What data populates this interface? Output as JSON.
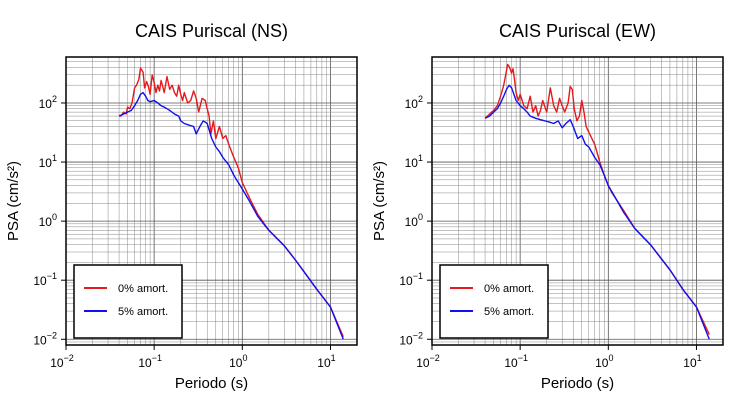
{
  "chart_data": [
    {
      "type": "line",
      "title": "CAIS Puriscal (NS)",
      "xlabel": "Periodo (s)",
      "ylabel": "PSA (cm/s²)",
      "x_scale": "log",
      "y_scale": "log",
      "xlim": [
        0.01,
        20
      ],
      "ylim": [
        0.008,
        600
      ],
      "grid": true,
      "legend_position": "bottom-left",
      "x_ticks": [
        {
          "base": "10",
          "exp": "−2",
          "value": 0.01
        },
        {
          "base": "10",
          "exp": "−1",
          "value": 0.1
        },
        {
          "base": "10",
          "exp": "0",
          "value": 1
        },
        {
          "base": "10",
          "exp": "1",
          "value": 10
        }
      ],
      "y_ticks": [
        {
          "base": "10",
          "exp": "−2",
          "value": 0.01
        },
        {
          "base": "10",
          "exp": "−1",
          "value": 0.1
        },
        {
          "base": "10",
          "exp": "0",
          "value": 1
        },
        {
          "base": "10",
          "exp": "1",
          "value": 10
        },
        {
          "base": "10",
          "exp": "2",
          "value": 100
        }
      ],
      "series": [
        {
          "name": "0% amort.",
          "color": "#e41a1c",
          "points": [
            [
              0.04,
              62
            ],
            [
              0.042,
              60
            ],
            [
              0.045,
              70
            ],
            [
              0.048,
              65
            ],
            [
              0.05,
              85
            ],
            [
              0.053,
              80
            ],
            [
              0.056,
              100
            ],
            [
              0.06,
              180
            ],
            [
              0.063,
              200
            ],
            [
              0.067,
              250
            ],
            [
              0.07,
              390
            ],
            [
              0.075,
              330
            ],
            [
              0.078,
              180
            ],
            [
              0.082,
              230
            ],
            [
              0.086,
              190
            ],
            [
              0.09,
              140
            ],
            [
              0.095,
              300
            ],
            [
              0.1,
              220
            ],
            [
              0.105,
              150
            ],
            [
              0.11,
              200
            ],
            [
              0.115,
              160
            ],
            [
              0.12,
              240
            ],
            [
              0.125,
              190
            ],
            [
              0.13,
              150
            ],
            [
              0.14,
              280
            ],
            [
              0.15,
              170
            ],
            [
              0.16,
              200
            ],
            [
              0.17,
              150
            ],
            [
              0.18,
              130
            ],
            [
              0.19,
              200
            ],
            [
              0.2,
              140
            ],
            [
              0.21,
              110
            ],
            [
              0.22,
              150
            ],
            [
              0.24,
              100
            ],
            [
              0.26,
              110
            ],
            [
              0.28,
              160
            ],
            [
              0.3,
              120
            ],
            [
              0.32,
              70
            ],
            [
              0.35,
              120
            ],
            [
              0.38,
              110
            ],
            [
              0.4,
              80
            ],
            [
              0.42,
              60
            ],
            [
              0.44,
              30
            ],
            [
              0.47,
              50
            ],
            [
              0.5,
              25
            ],
            [
              0.55,
              40
            ],
            [
              0.6,
              25
            ],
            [
              0.65,
              28
            ],
            [
              0.7,
              20
            ],
            [
              0.8,
              12
            ],
            [
              0.9,
              8
            ],
            [
              1.0,
              4.5
            ],
            [
              1.2,
              2.5
            ],
            [
              1.5,
              1.3
            ],
            [
              2,
              0.7
            ],
            [
              3,
              0.38
            ],
            [
              4,
              0.22
            ],
            [
              5,
              0.14
            ],
            [
              7,
              0.07
            ],
            [
              10,
              0.035
            ],
            [
              14,
              0.011
            ]
          ]
        },
        {
          "name": "5% amort.",
          "color": "#1010f0",
          "points": [
            [
              0.04,
              60
            ],
            [
              0.045,
              65
            ],
            [
              0.05,
              70
            ],
            [
              0.055,
              75
            ],
            [
              0.06,
              90
            ],
            [
              0.065,
              110
            ],
            [
              0.07,
              140
            ],
            [
              0.075,
              150
            ],
            [
              0.08,
              130
            ],
            [
              0.085,
              110
            ],
            [
              0.09,
              105
            ],
            [
              0.1,
              110
            ],
            [
              0.11,
              100
            ],
            [
              0.12,
              90
            ],
            [
              0.13,
              85
            ],
            [
              0.14,
              80
            ],
            [
              0.15,
              75
            ],
            [
              0.17,
              65
            ],
            [
              0.19,
              60
            ],
            [
              0.2,
              50
            ],
            [
              0.22,
              45
            ],
            [
              0.25,
              42
            ],
            [
              0.28,
              40
            ],
            [
              0.3,
              30
            ],
            [
              0.33,
              40
            ],
            [
              0.36,
              50
            ],
            [
              0.4,
              45
            ],
            [
              0.45,
              25
            ],
            [
              0.5,
              18
            ],
            [
              0.55,
              15
            ],
            [
              0.6,
              12
            ],
            [
              0.7,
              9
            ],
            [
              0.8,
              6
            ],
            [
              0.9,
              4.5
            ],
            [
              1.0,
              3.5
            ],
            [
              1.2,
              2.2
            ],
            [
              1.5,
              1.2
            ],
            [
              2,
              0.7
            ],
            [
              3,
              0.38
            ],
            [
              4,
              0.22
            ],
            [
              5,
              0.14
            ],
            [
              7,
              0.07
            ],
            [
              10,
              0.035
            ],
            [
              14,
              0.01
            ]
          ]
        }
      ]
    },
    {
      "type": "line",
      "title": "CAIS Puriscal (EW)",
      "xlabel": "Periodo (s)",
      "ylabel": "PSA (cm/s²)",
      "x_scale": "log",
      "y_scale": "log",
      "xlim": [
        0.01,
        20
      ],
      "ylim": [
        0.008,
        600
      ],
      "grid": true,
      "legend_position": "bottom-left",
      "x_ticks": [
        {
          "base": "10",
          "exp": "−2",
          "value": 0.01
        },
        {
          "base": "10",
          "exp": "−1",
          "value": 0.1
        },
        {
          "base": "10",
          "exp": "0",
          "value": 1
        },
        {
          "base": "10",
          "exp": "1",
          "value": 10
        }
      ],
      "y_ticks": [
        {
          "base": "10",
          "exp": "−2",
          "value": 0.01
        },
        {
          "base": "10",
          "exp": "−1",
          "value": 0.1
        },
        {
          "base": "10",
          "exp": "0",
          "value": 1
        },
        {
          "base": "10",
          "exp": "1",
          "value": 10
        },
        {
          "base": "10",
          "exp": "2",
          "value": 100
        }
      ],
      "series": [
        {
          "name": "0% amort.",
          "color": "#e41a1c",
          "points": [
            [
              0.04,
              55
            ],
            [
              0.045,
              65
            ],
            [
              0.05,
              75
            ],
            [
              0.055,
              90
            ],
            [
              0.06,
              130
            ],
            [
              0.065,
              200
            ],
            [
              0.07,
              350
            ],
            [
              0.072,
              450
            ],
            [
              0.076,
              400
            ],
            [
              0.08,
              320
            ],
            [
              0.083,
              380
            ],
            [
              0.086,
              260
            ],
            [
              0.09,
              150
            ],
            [
              0.095,
              110
            ],
            [
              0.1,
              140
            ],
            [
              0.11,
              90
            ],
            [
              0.12,
              80
            ],
            [
              0.13,
              130
            ],
            [
              0.14,
              70
            ],
            [
              0.15,
              90
            ],
            [
              0.16,
              60
            ],
            [
              0.17,
              75
            ],
            [
              0.18,
              110
            ],
            [
              0.2,
              70
            ],
            [
              0.22,
              180
            ],
            [
              0.24,
              90
            ],
            [
              0.26,
              70
            ],
            [
              0.28,
              120
            ],
            [
              0.3,
              90
            ],
            [
              0.32,
              70
            ],
            [
              0.35,
              100
            ],
            [
              0.37,
              190
            ],
            [
              0.39,
              170
            ],
            [
              0.41,
              80
            ],
            [
              0.44,
              50
            ],
            [
              0.47,
              60
            ],
            [
              0.5,
              110
            ],
            [
              0.53,
              70
            ],
            [
              0.56,
              40
            ],
            [
              0.6,
              32
            ],
            [
              0.7,
              20
            ],
            [
              0.8,
              10
            ],
            [
              0.9,
              6
            ],
            [
              1.0,
              4
            ],
            [
              1.1,
              3
            ],
            [
              1.5,
              1.5
            ],
            [
              2,
              0.75
            ],
            [
              3,
              0.4
            ],
            [
              4,
              0.23
            ],
            [
              5,
              0.15
            ],
            [
              7,
              0.07
            ],
            [
              10,
              0.035
            ],
            [
              14,
              0.012
            ]
          ]
        },
        {
          "name": "5% amort.",
          "color": "#1010f0",
          "points": [
            [
              0.04,
              55
            ],
            [
              0.045,
              60
            ],
            [
              0.05,
              70
            ],
            [
              0.055,
              80
            ],
            [
              0.06,
              100
            ],
            [
              0.065,
              130
            ],
            [
              0.07,
              170
            ],
            [
              0.075,
              200
            ],
            [
              0.08,
              180
            ],
            [
              0.085,
              140
            ],
            [
              0.09,
              110
            ],
            [
              0.1,
              90
            ],
            [
              0.11,
              80
            ],
            [
              0.12,
              70
            ],
            [
              0.13,
              60
            ],
            [
              0.15,
              55
            ],
            [
              0.17,
              52
            ],
            [
              0.19,
              50
            ],
            [
              0.21,
              48
            ],
            [
              0.24,
              45
            ],
            [
              0.27,
              50
            ],
            [
              0.3,
              38
            ],
            [
              0.33,
              45
            ],
            [
              0.37,
              52
            ],
            [
              0.4,
              40
            ],
            [
              0.45,
              25
            ],
            [
              0.5,
              28
            ],
            [
              0.55,
              20
            ],
            [
              0.6,
              18
            ],
            [
              0.7,
              12
            ],
            [
              0.8,
              9
            ],
            [
              0.9,
              6
            ],
            [
              1.0,
              4
            ],
            [
              1.2,
              2.5
            ],
            [
              1.5,
              1.4
            ],
            [
              2,
              0.75
            ],
            [
              3,
              0.4
            ],
            [
              4,
              0.23
            ],
            [
              5,
              0.15
            ],
            [
              7,
              0.07
            ],
            [
              10,
              0.035
            ],
            [
              14,
              0.01
            ]
          ]
        }
      ]
    }
  ]
}
